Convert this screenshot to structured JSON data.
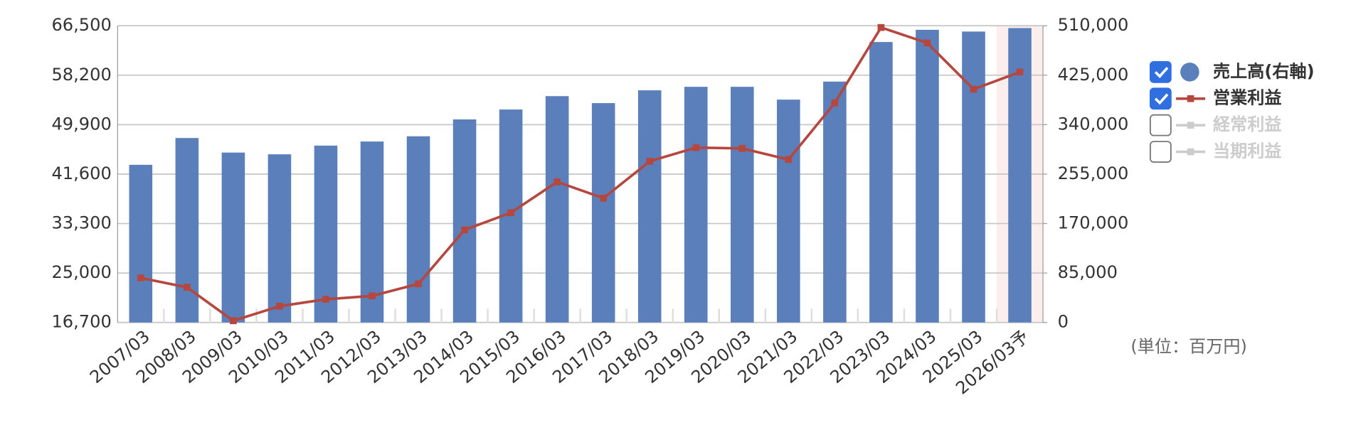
{
  "chart_data": {
    "type": "bar-line",
    "categories": [
      "2007/03",
      "2008/03",
      "2009/03",
      "2010/03",
      "2011/03",
      "2012/03",
      "2013/03",
      "2014/03",
      "2015/03",
      "2016/03",
      "2017/03",
      "2018/03",
      "2019/03",
      "2020/03",
      "2021/03",
      "2022/03",
      "2023/03",
      "2024/03",
      "2025/03",
      "2026/03予"
    ],
    "series": [
      {
        "name": "売上高(右軸)",
        "type": "bar",
        "axis": "y2",
        "color": "#5a7fba",
        "visible": true,
        "values": [
          271000,
          317000,
          292000,
          289000,
          304000,
          311000,
          320000,
          349000,
          366000,
          389000,
          377000,
          399000,
          405000,
          405000,
          383000,
          414000,
          482000,
          503000,
          500000,
          506000
        ]
      },
      {
        "name": "営業利益",
        "type": "line",
        "color": "#b5473f",
        "visible": true,
        "values": [
          24180,
          22600,
          16990,
          19430,
          20590,
          21160,
          23180,
          32240,
          35120,
          40300,
          37560,
          43750,
          46050,
          45910,
          44040,
          53540,
          66200,
          63610,
          55840,
          58720
        ]
      },
      {
        "name": "経常利益",
        "type": "line",
        "color": "#cccccc",
        "visible": false,
        "values": [
          null,
          null,
          null,
          null,
          null,
          null,
          null,
          null,
          null,
          null,
          null,
          null,
          null,
          null,
          null,
          null,
          null,
          null,
          null,
          null
        ]
      },
      {
        "name": "当期利益",
        "type": "line",
        "color": "#cccccc",
        "visible": false,
        "values": [
          null,
          null,
          null,
          null,
          null,
          null,
          null,
          null,
          null,
          null,
          null,
          null,
          null,
          null,
          null,
          null,
          null,
          null,
          null,
          null
        ]
      }
    ],
    "ylim": [
      16700,
      66500
    ],
    "yticks": [
      {
        "value": 16700,
        "label": "16,700"
      },
      {
        "value": 25000,
        "label": "25,000"
      },
      {
        "value": 33300,
        "label": "33,300"
      },
      {
        "value": 41600,
        "label": "41,600"
      },
      {
        "value": 49900,
        "label": "49,900"
      },
      {
        "value": 58200,
        "label": "58,200"
      },
      {
        "value": 66500,
        "label": "66,500"
      }
    ],
    "y2lim": [
      0,
      510000
    ],
    "y2ticks": [
      0,
      {
        "value": 85000,
        "label": "85,000"
      },
      {
        "value": 170000,
        "label": "170,000"
      },
      {
        "value": 255000,
        "label": "255,000"
      },
      {
        "value": 340000,
        "label": "340,000"
      },
      {
        "value": 425000,
        "label": "425,000"
      },
      {
        "value": 510000,
        "label": "510,000"
      }
    ],
    "grid": true,
    "forecast_highlight_color": "#fdeeee",
    "annotation": "(単位：百万円)"
  }
}
